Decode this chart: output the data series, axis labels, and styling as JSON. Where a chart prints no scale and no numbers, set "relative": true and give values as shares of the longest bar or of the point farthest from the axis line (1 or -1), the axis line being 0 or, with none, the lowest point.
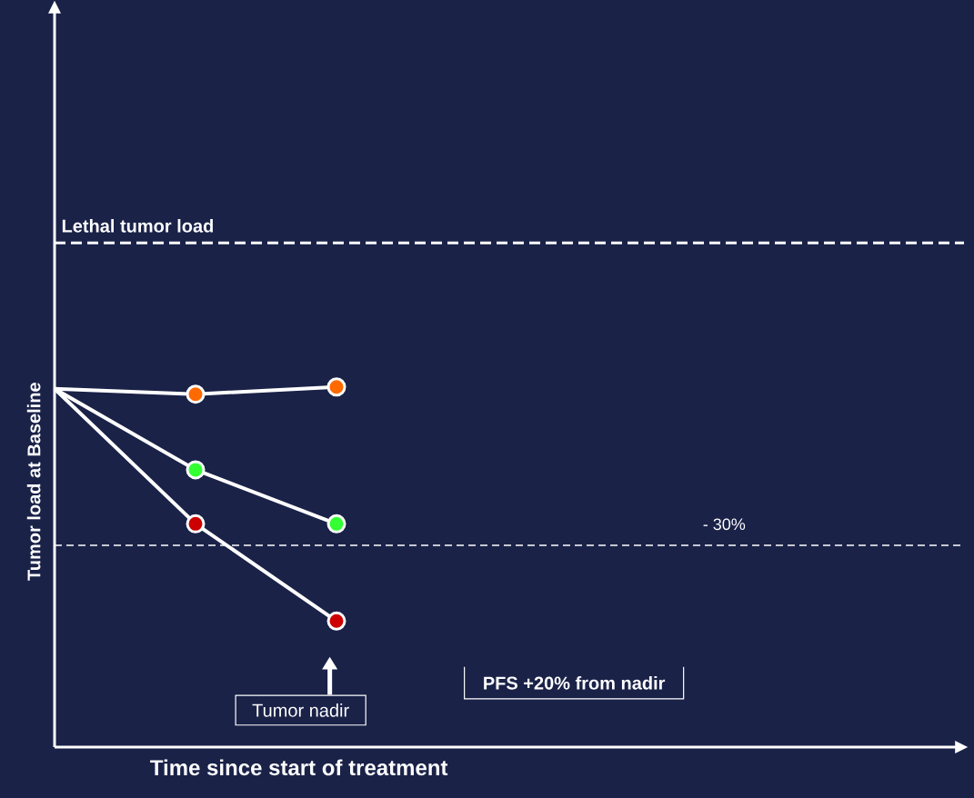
{
  "chart_data": {
    "type": "line",
    "relative": true,
    "xlabel": "Time since start of treatment",
    "ylabel": "Tumor load at Baseline",
    "categories": [
      null,
      null,
      null
    ],
    "tick_labels": false,
    "marker": "circle",
    "line_style": "solid",
    "series": [
      {
        "color": "#ffffff",
        "colors": [
          null,
          "#ff6a00",
          "#ff6a00"
        ],
        "values": [
          0.995,
          0.98,
          1.0
        ]
      },
      {
        "color": "#ffffff",
        "colors": [
          null,
          "#33ff33",
          "#33ff33"
        ],
        "values": [
          0.995,
          0.77,
          0.62
        ]
      },
      {
        "color": "#ffffff",
        "colors": [
          null,
          "#cc0000",
          "#cc0000"
        ],
        "values": [
          0.995,
          0.62,
          0.35
        ]
      }
    ],
    "ref_lines": [
      {
        "axis": "y",
        "value": 1.4,
        "label": "Lethal tumor load",
        "line_style": "dashed",
        "color": "#ffffff"
      },
      {
        "axis": "y",
        "value": 0.56,
        "line_style": "dashed",
        "color": "#ffffff"
      }
    ],
    "annotations": [
      "Tumor nadir",
      "PFS +20% from nadir",
      "- 30%"
    ]
  }
}
